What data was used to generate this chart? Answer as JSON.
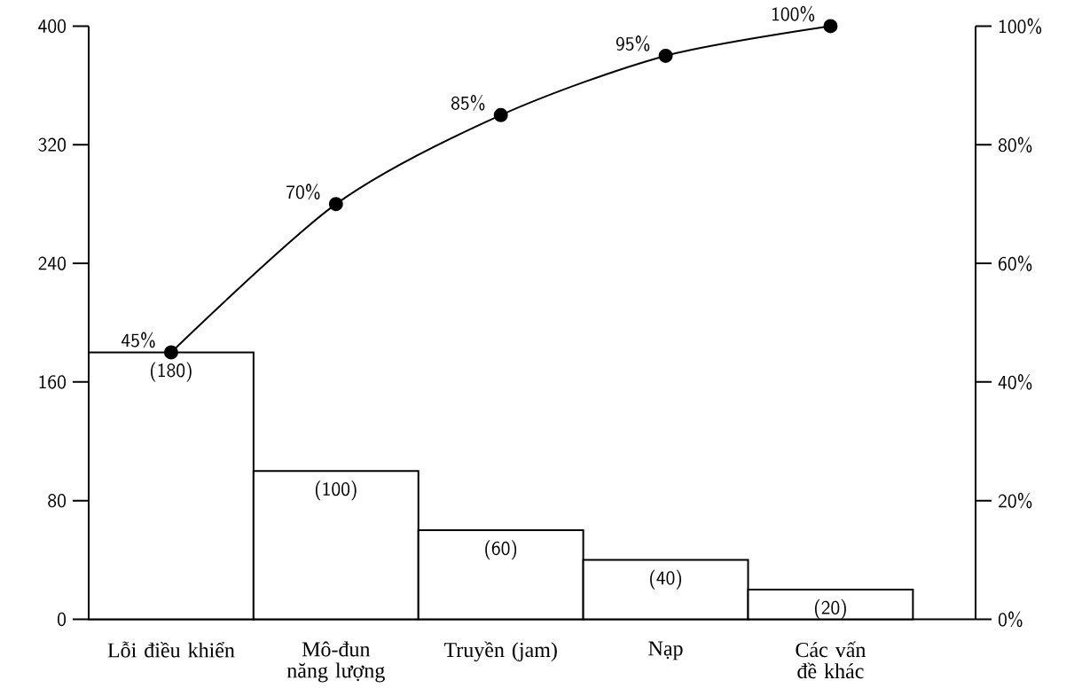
{
  "chart_data": {
    "type": "bar",
    "categories": [
      "Lỗi điều khiển",
      "Mô-đun năng lượng",
      "Truyền (jam)",
      "Nạp",
      "Các vấn đề khác"
    ],
    "series": [
      {
        "color": "#ffffff",
        "values": [
          180,
          100,
          60,
          40,
          20
        ],
        "value_labels": [
          "(180)",
          "(100)",
          "(60)",
          "(40)",
          "(20)"
        ]
      },
      {
        "type": "line",
        "axis": "y2",
        "color": "#000000",
        "marker": "circle",
        "values": [
          45,
          70,
          85,
          95,
          100
        ],
        "value_labels": [
          "45%",
          "70%",
          "85%",
          "95%",
          "100%"
        ]
      }
    ],
    "ylim": [
      0,
      400
    ],
    "yticks": [
      0,
      80,
      160,
      240,
      320,
      400
    ],
    "y2lim": [
      0,
      100
    ],
    "y2ticks": [
      {
        "value": 0,
        "label": "0%"
      },
      {
        "value": 20,
        "label": "20%"
      },
      {
        "value": 40,
        "label": "40%"
      },
      {
        "value": 60,
        "label": "60%"
      },
      {
        "value": 80,
        "label": "80%"
      },
      {
        "value": 100,
        "label": "100%"
      }
    ]
  }
}
